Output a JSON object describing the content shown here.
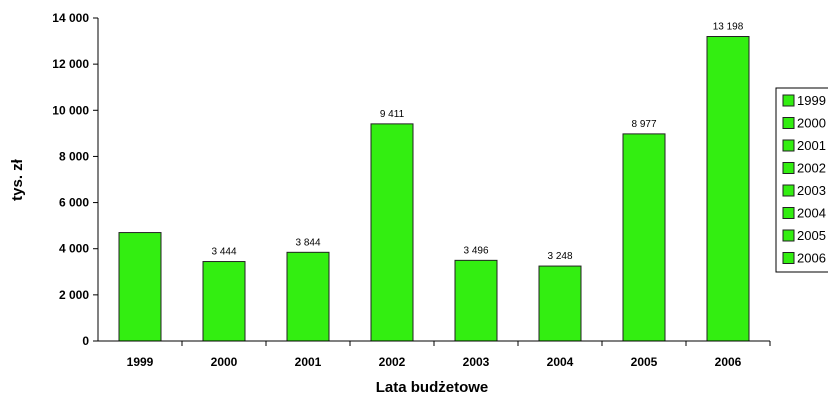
{
  "chart_data": {
    "type": "bar",
    "categories": [
      "1999",
      "2000",
      "2001",
      "2002",
      "2003",
      "2004",
      "2005",
      "2006"
    ],
    "values": [
      4700,
      3444,
      3844,
      9411,
      3496,
      3248,
      8977,
      13198
    ],
    "data_labels": [
      "",
      "3 444",
      "3 844",
      "9 411",
      "3 496",
      "3 248",
      "8 977",
      "13 198"
    ],
    "yticks": [
      "0",
      "2 000",
      "4 000",
      "6 000",
      "8 000",
      "10 000",
      "12 000",
      "14 000"
    ],
    "ytick_values": [
      0,
      2000,
      4000,
      6000,
      8000,
      10000,
      12000,
      14000
    ],
    "xlabel": "Lata budżetowe",
    "ylabel": "tys. zł",
    "ylim": [
      0,
      14000
    ],
    "grid": false,
    "legend": {
      "position": "right",
      "entries": [
        "1999",
        "2000",
        "2001",
        "2002",
        "2003",
        "2004",
        "2005",
        "2006"
      ]
    },
    "colors": {
      "bar": "#33ee11",
      "bar_stroke": "#222222"
    }
  }
}
